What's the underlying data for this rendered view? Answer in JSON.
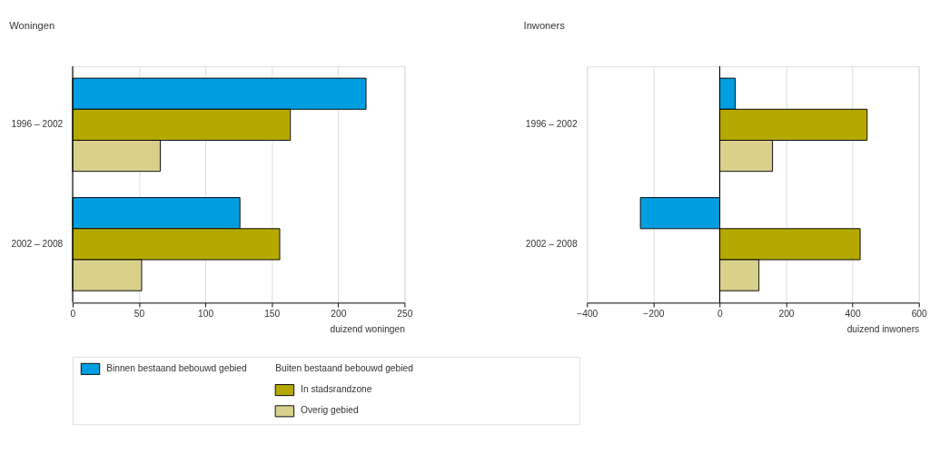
{
  "chart_data": [
    {
      "type": "bar",
      "orientation": "horizontal",
      "title": "Woningen",
      "xlabel": "duizend woningen",
      "categories": [
        "1996 – 2002",
        "2002 – 2008"
      ],
      "xlim": [
        0,
        250
      ],
      "xticks": [
        0,
        50,
        100,
        150,
        200,
        250
      ],
      "grid": "x",
      "legend": "bottom",
      "legend_title": "Buiten bestaand bebouwd gebied",
      "series": [
        {
          "name": "Binnen bestaand bebouwd gebied",
          "color": "#009ee0",
          "values": [
            221,
            126
          ]
        },
        {
          "name": "In stadsrandzone",
          "color": "#b5a900",
          "values": [
            164,
            156
          ]
        },
        {
          "name": "Overig gebied",
          "color": "#d9d08c",
          "values": [
            66,
            52
          ]
        }
      ]
    },
    {
      "type": "bar",
      "orientation": "horizontal",
      "title": "Inwoners",
      "xlabel": "duizend inwoners",
      "categories": [
        "1996 – 2002",
        "2002 – 2008"
      ],
      "xlim": [
        -400,
        600
      ],
      "xticks": [
        -400,
        -200,
        0,
        200,
        400,
        600
      ],
      "grid": "x",
      "series": [
        {
          "color": "#009ee0",
          "values": [
            47,
            -239
          ]
        },
        {
          "color": "#b5a900",
          "values": [
            444,
            423
          ]
        },
        {
          "color": "#d9d08c",
          "values": [
            159,
            118
          ]
        }
      ]
    }
  ]
}
